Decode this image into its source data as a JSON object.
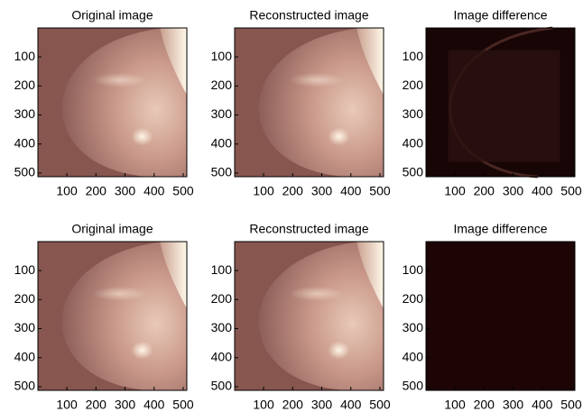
{
  "chart_data": [
    {
      "type": "image",
      "title": "Original image",
      "xlim": [
        0.5,
        512.5
      ],
      "ylim": [
        0.5,
        512.5
      ],
      "xticks": [
        100,
        200,
        300,
        400,
        500
      ],
      "yticks": [
        100,
        200,
        300,
        400,
        500
      ]
    },
    {
      "type": "image",
      "title": "Reconstructed image",
      "xlim": [
        0.5,
        512.5
      ],
      "ylim": [
        0.5,
        512.5
      ],
      "xticks": [
        100,
        200,
        300,
        400,
        500
      ],
      "yticks": [
        100,
        200,
        300,
        400,
        500
      ]
    },
    {
      "type": "image",
      "title": "Image difference",
      "xlim": [
        0.5,
        512.5
      ],
      "ylim": [
        0.5,
        512.5
      ],
      "xticks": [
        100,
        200,
        300,
        400,
        500
      ],
      "yticks": [
        100,
        200,
        300,
        400,
        500
      ]
    },
    {
      "type": "image",
      "title": "Original image",
      "xlim": [
        0.5,
        512.5
      ],
      "ylim": [
        0.5,
        512.5
      ],
      "xticks": [
        100,
        200,
        300,
        400,
        500
      ],
      "yticks": [
        100,
        200,
        300,
        400,
        500
      ]
    },
    {
      "type": "image",
      "title": "Reconstructed image",
      "xlim": [
        0.5,
        512.5
      ],
      "ylim": [
        0.5,
        512.5
      ],
      "xticks": [
        100,
        200,
        300,
        400,
        500
      ],
      "yticks": [
        100,
        200,
        300,
        400,
        500
      ]
    },
    {
      "type": "image",
      "title": "Image difference",
      "xlim": [
        0.5,
        512.5
      ],
      "ylim": [
        0.5,
        512.5
      ],
      "xticks": [
        100,
        200,
        300,
        400,
        500
      ],
      "yticks": [
        100,
        200,
        300,
        400,
        500
      ]
    }
  ]
}
